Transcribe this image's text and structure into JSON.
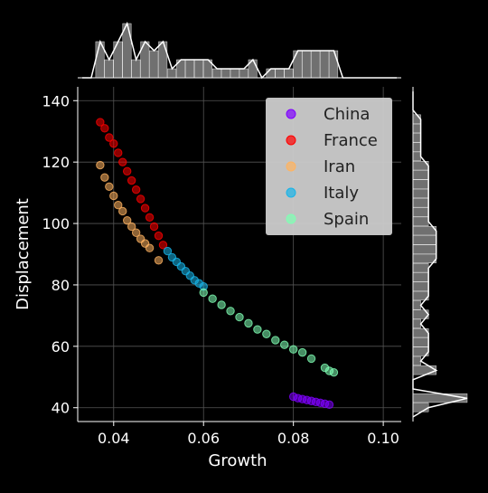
{
  "chart_data": {
    "type": "scatter",
    "title": "",
    "xlabel": "Growth",
    "ylabel": "Displacement",
    "xlim": [
      0.032,
      0.104
    ],
    "ylim": [
      35.5,
      144.5
    ],
    "xticks": [
      0.04,
      0.06,
      0.08,
      0.1
    ],
    "xtick_labels": [
      "0.04",
      "0.06",
      "0.08",
      "0.10"
    ],
    "yticks": [
      40,
      60,
      80,
      100,
      120,
      140
    ],
    "ytick_labels": [
      "40",
      "60",
      "80",
      "100",
      "120",
      "140"
    ],
    "grid": true,
    "legend_position": "top-right",
    "marginal_plots": "histogram with density curve on top (Growth) and right (Displacement)",
    "series": [
      {
        "name": "China",
        "color": "#7f00ff",
        "points": [
          [
            0.08,
            43.6
          ],
          [
            0.081,
            43.1
          ],
          [
            0.082,
            42.8
          ],
          [
            0.083,
            42.5
          ],
          [
            0.084,
            42.2
          ],
          [
            0.085,
            41.9
          ],
          [
            0.086,
            41.6
          ],
          [
            0.087,
            41.3
          ],
          [
            0.088,
            41.0
          ]
        ]
      },
      {
        "name": "France",
        "color": "#ff0000",
        "points": [
          [
            0.037,
            133
          ],
          [
            0.038,
            131
          ],
          [
            0.039,
            128
          ],
          [
            0.04,
            126
          ],
          [
            0.041,
            123
          ],
          [
            0.042,
            120
          ],
          [
            0.043,
            117
          ],
          [
            0.044,
            114
          ],
          [
            0.045,
            111
          ],
          [
            0.046,
            108
          ],
          [
            0.047,
            105
          ],
          [
            0.048,
            102
          ],
          [
            0.049,
            99
          ],
          [
            0.05,
            96
          ],
          [
            0.051,
            93
          ]
        ]
      },
      {
        "name": "Iran",
        "color": "#ffb360",
        "points": [
          [
            0.037,
            119
          ],
          [
            0.038,
            115
          ],
          [
            0.039,
            112
          ],
          [
            0.04,
            109
          ],
          [
            0.041,
            106
          ],
          [
            0.042,
            104
          ],
          [
            0.043,
            101
          ],
          [
            0.044,
            99
          ],
          [
            0.045,
            97
          ],
          [
            0.046,
            95
          ],
          [
            0.047,
            93.5
          ],
          [
            0.048,
            92
          ],
          [
            0.05,
            88
          ]
        ]
      },
      {
        "name": "Italy",
        "color": "#18b4e8",
        "points": [
          [
            0.052,
            91
          ],
          [
            0.053,
            89
          ],
          [
            0.054,
            87.5
          ],
          [
            0.055,
            86
          ],
          [
            0.056,
            84.5
          ],
          [
            0.057,
            83
          ],
          [
            0.058,
            81.5
          ],
          [
            0.059,
            80.5
          ],
          [
            0.06,
            79.5
          ]
        ]
      },
      {
        "name": "Spain",
        "color": "#80ffb4",
        "points": [
          [
            0.06,
            77.5
          ],
          [
            0.062,
            75.5
          ],
          [
            0.064,
            73.5
          ],
          [
            0.066,
            71.5
          ],
          [
            0.068,
            69.5
          ],
          [
            0.07,
            67.5
          ],
          [
            0.072,
            65.5
          ],
          [
            0.074,
            64
          ],
          [
            0.076,
            62
          ],
          [
            0.078,
            60.5
          ],
          [
            0.08,
            59
          ],
          [
            0.082,
            58
          ],
          [
            0.084,
            56
          ],
          [
            0.087,
            53
          ],
          [
            0.088,
            52
          ],
          [
            0.089,
            51.5
          ]
        ]
      }
    ]
  }
}
